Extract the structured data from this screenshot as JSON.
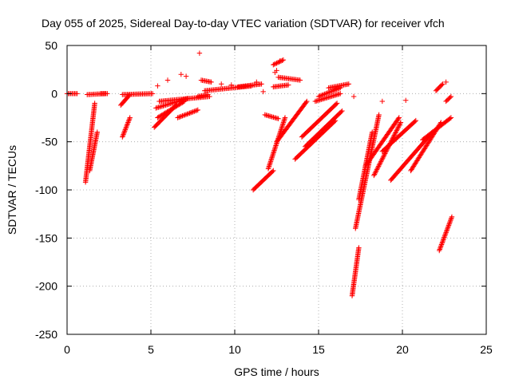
{
  "chart_data": {
    "type": "scatter",
    "title": "Day 055 of 2025, Sidereal Day-to-day VTEC variation (SDTVAR) for receiver vfch",
    "xlabel": "GPS time / hours",
    "ylabel": "SDTVAR / TECUs",
    "xlim": [
      0,
      25
    ],
    "ylim": [
      -250,
      50
    ],
    "xticks": [
      0,
      5,
      10,
      15,
      20,
      25
    ],
    "yticks": [
      -250,
      -200,
      -150,
      -100,
      -50,
      0,
      50
    ],
    "xtick_labels": [
      "0",
      "5",
      "10",
      "15",
      "20",
      "25"
    ],
    "ytick_labels": [
      "-250",
      "-200",
      "-150",
      "-100",
      "-50",
      "0",
      "50"
    ],
    "grid": true,
    "marker": "+",
    "series_color": "#ff0000",
    "segments": [
      {
        "x": [
          0.0,
          0.6
        ],
        "y": [
          0,
          0
        ]
      },
      {
        "x": [
          1.1,
          1.65
        ],
        "y": [
          -92,
          -10
        ]
      },
      {
        "x": [
          1.35,
          1.8
        ],
        "y": [
          -80,
          -40
        ]
      },
      {
        "x": [
          1.2,
          2.3
        ],
        "y": [
          -1,
          0
        ]
      },
      {
        "x": [
          2.0,
          2.4
        ],
        "y": [
          0,
          0
        ]
      },
      {
        "x": [
          3.3,
          3.75
        ],
        "y": [
          -45,
          -25
        ]
      },
      {
        "x": [
          3.2,
          3.7
        ],
        "y": [
          -12,
          -2
        ]
      },
      {
        "x": [
          3.3,
          5.1
        ],
        "y": [
          -1,
          0
        ]
      },
      {
        "x": [
          5.2,
          6.5
        ],
        "y": [
          -35,
          -12
        ]
      },
      {
        "x": [
          5.3,
          7.2
        ],
        "y": [
          -15,
          -5
        ]
      },
      {
        "x": [
          5.4,
          7.0
        ],
        "y": [
          -25,
          -8
        ]
      },
      {
        "x": [
          6.6,
          7.8
        ],
        "y": [
          -25,
          -17
        ]
      },
      {
        "x": [
          5.5,
          8.5
        ],
        "y": [
          -8,
          -3
        ]
      },
      {
        "x": [
          7.8,
          8.4
        ],
        "y": [
          -3,
          -1
        ]
      },
      {
        "x": [
          8.2,
          11.0
        ],
        "y": [
          3,
          8
        ]
      },
      {
        "x": [
          8.0,
          8.6
        ],
        "y": [
          14,
          12
        ]
      },
      {
        "x": [
          10.2,
          11.6
        ],
        "y": [
          7,
          10
        ]
      },
      {
        "x": [
          11.1,
          12.3
        ],
        "y": [
          -100,
          -80
        ]
      },
      {
        "x": [
          12.0,
          13.0
        ],
        "y": [
          -78,
          -25
        ]
      },
      {
        "x": [
          11.8,
          12.6
        ],
        "y": [
          -22,
          -26
        ]
      },
      {
        "x": [
          12.3,
          12.9
        ],
        "y": [
          30,
          35
        ]
      },
      {
        "x": [
          12.6,
          13.9
        ],
        "y": [
          17,
          14
        ]
      },
      {
        "x": [
          12.3,
          13.2
        ],
        "y": [
          7,
          9
        ]
      },
      {
        "x": [
          12.5,
          14.3
        ],
        "y": [
          -50,
          -8
        ]
      },
      {
        "x": [
          13.6,
          16.0
        ],
        "y": [
          -68,
          -28
        ]
      },
      {
        "x": [
          14.2,
          16.4
        ],
        "y": [
          -55,
          -18
        ]
      },
      {
        "x": [
          14.0,
          16.1
        ],
        "y": [
          -45,
          -10
        ]
      },
      {
        "x": [
          14.8,
          16.3
        ],
        "y": [
          -8,
          0
        ]
      },
      {
        "x": [
          15.0,
          16.3
        ],
        "y": [
          -3,
          6
        ]
      },
      {
        "x": [
          15.6,
          16.8
        ],
        "y": [
          6,
          10
        ]
      },
      {
        "x": [
          17.0,
          17.4
        ],
        "y": [
          -210,
          -160
        ]
      },
      {
        "x": [
          17.2,
          18.6
        ],
        "y": [
          -140,
          -22
        ]
      },
      {
        "x": [
          17.4,
          18.2
        ],
        "y": [
          -110,
          -40
        ]
      },
      {
        "x": [
          17.8,
          19.8
        ],
        "y": [
          -75,
          -25
        ]
      },
      {
        "x": [
          18.3,
          19.9
        ],
        "y": [
          -85,
          -30
        ]
      },
      {
        "x": [
          18.8,
          20.8
        ],
        "y": [
          -60,
          -28
        ]
      },
      {
        "x": [
          19.3,
          21.8
        ],
        "y": [
          -90,
          -40
        ]
      },
      {
        "x": [
          20.5,
          22.3
        ],
        "y": [
          -80,
          -30
        ]
      },
      {
        "x": [
          21.2,
          22.9
        ],
        "y": [
          -48,
          -25
        ]
      },
      {
        "x": [
          22.2,
          22.95
        ],
        "y": [
          -163,
          -128
        ]
      },
      {
        "x": [
          22.6,
          22.9
        ],
        "y": [
          -8,
          -3
        ]
      },
      {
        "x": [
          22.0,
          22.4
        ],
        "y": [
          3,
          10
        ]
      }
    ],
    "points": [
      {
        "x": 7.9,
        "y": 42
      },
      {
        "x": 5.4,
        "y": 8
      },
      {
        "x": 6.0,
        "y": 14
      },
      {
        "x": 6.8,
        "y": 20
      },
      {
        "x": 7.1,
        "y": 18
      },
      {
        "x": 9.2,
        "y": 10
      },
      {
        "x": 9.8,
        "y": 9
      },
      {
        "x": 11.3,
        "y": 12
      },
      {
        "x": 12.5,
        "y": 24
      },
      {
        "x": 12.7,
        "y": 34
      },
      {
        "x": 11.7,
        "y": 2
      },
      {
        "x": 12.4,
        "y": 22
      },
      {
        "x": 17.1,
        "y": -3
      },
      {
        "x": 18.8,
        "y": -8
      },
      {
        "x": 20.2,
        "y": -7
      },
      {
        "x": 22.6,
        "y": 12
      }
    ]
  }
}
